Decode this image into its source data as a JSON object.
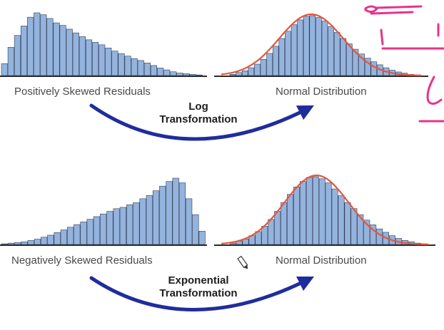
{
  "diagram": {
    "colors": {
      "bar_fill": "#94b3dd",
      "bar_stroke": "#2f3e57",
      "curve": "#e8553a",
      "arrow": "#1f2d9c",
      "axis": "#2a2a2a",
      "annotation_ink": "#e8338a"
    },
    "rows": [
      {
        "source_label": "Positively Skewed Residuals",
        "target_label": "Normal Distribution",
        "transformation_line1": "Log",
        "transformation_line2": "Transformation",
        "source_bars": [
          0.19,
          0.45,
          0.64,
          0.79,
          0.93,
          1.0,
          0.97,
          0.91,
          0.84,
          0.8,
          0.74,
          0.68,
          0.62,
          0.57,
          0.53,
          0.49,
          0.44,
          0.39,
          0.35,
          0.31,
          0.27,
          0.24,
          0.2,
          0.16,
          0.12,
          0.09,
          0.06,
          0.04,
          0.03,
          0.02,
          0.01
        ]
      },
      {
        "source_label": "Negatively Skewed Residuals",
        "target_label": "Normal Distribution",
        "transformation_line1": "Exponential",
        "transformation_line2": "Transformation",
        "source_bars": [
          0.01,
          0.02,
          0.03,
          0.04,
          0.06,
          0.08,
          0.11,
          0.14,
          0.18,
          0.22,
          0.26,
          0.3,
          0.34,
          0.38,
          0.42,
          0.46,
          0.5,
          0.54,
          0.56,
          0.6,
          0.63,
          0.69,
          0.74,
          0.81,
          0.88,
          0.95,
          1.0,
          0.93,
          0.69,
          0.45,
          0.2
        ]
      }
    ],
    "normal_bars": [
      0.02,
      0.05,
      0.08,
      0.13,
      0.19,
      0.27,
      0.37,
      0.49,
      0.62,
      0.74,
      0.85,
      0.93,
      0.99,
      1.0,
      0.97,
      0.91,
      0.82,
      0.72,
      0.62,
      0.53,
      0.44,
      0.36,
      0.29,
      0.23,
      0.18,
      0.13,
      0.09,
      0.06,
      0.04,
      0.02
    ]
  }
}
